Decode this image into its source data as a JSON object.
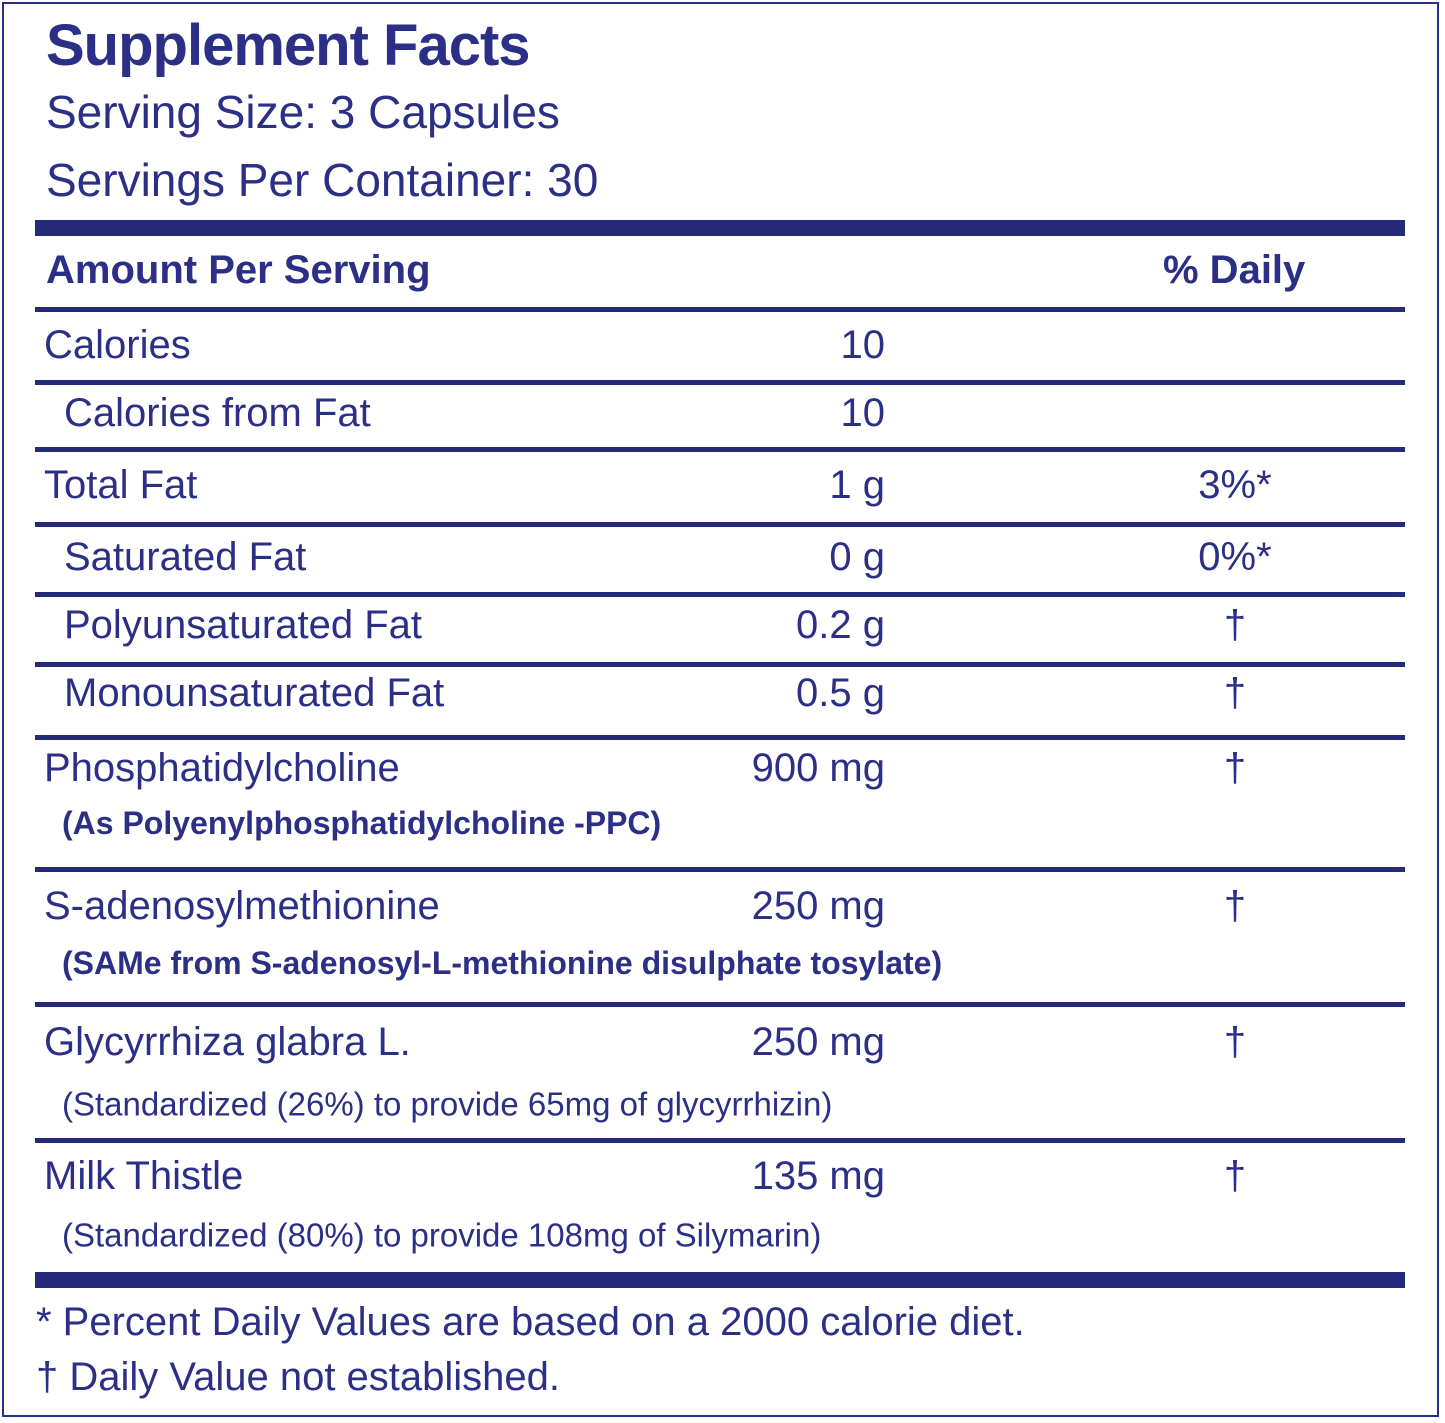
{
  "header": {
    "title": "Supplement Facts",
    "serving_size": "Serving Size: 3 Capsules",
    "servings_per_container": "Servings Per Container: 30"
  },
  "table": {
    "columns": [
      "Amount Per Serving",
      "% Daily"
    ],
    "rows": [
      {
        "name": "Calories",
        "amount": "10"
      },
      {
        "name": "Calories from Fat",
        "amount": "10"
      },
      {
        "name": "Total Fat",
        "amount": "1 g",
        "daily": "3%*"
      },
      {
        "name": "Saturated Fat",
        "amount": "0 g",
        "daily": "0%*"
      },
      {
        "name": "Polyunsaturated Fat",
        "amount": "0.2 g",
        "daily": "†"
      },
      {
        "name": "Monounsaturated Fat",
        "amount": "0.5 g",
        "daily": "†"
      },
      {
        "name": "Phosphatidylcholine",
        "note": "(As Polyenylphosphatidylcholine -PPC)",
        "amount": "900 mg",
        "daily": "†"
      },
      {
        "name": "S-adenosylmethionine",
        "note": "(SAMe from S-adenosyl-L-methionine disulphate tosylate)",
        "amount": "250 mg",
        "daily": "†"
      },
      {
        "name": "Glycyrrhiza glabra L.",
        "note": "(Standardized (26%) to provide 65mg of glycyrrhizin)",
        "amount": "250 mg",
        "daily": "†"
      },
      {
        "name": "Milk Thistle",
        "note": "(Standardized (80%) to provide 108mg of Silymarin)",
        "amount": "135 mg",
        "daily": "†"
      }
    ]
  },
  "footnotes": [
    "* Percent Daily Values are based on a 2000 calorie diet.",
    "† Daily Value not established."
  ]
}
